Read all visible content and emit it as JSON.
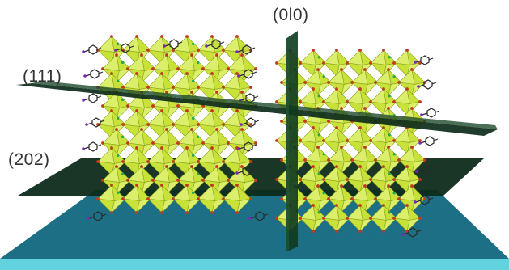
{
  "figure": {
    "labels": {
      "plane_010": "(0l0)",
      "plane_111": "(111)",
      "plane_202": "(202)"
    },
    "elements": {
      "octahedra": "lead-halide-octahedra",
      "organic_cations": "organic-spacer-cations",
      "substrate": "substrate-slab"
    },
    "colors": {
      "octahedron_face": "#c9e23a",
      "octahedron_face_light": "#dcef6c",
      "octahedron_edge": "#8aa21a",
      "vertex_atom": "#c23a1e",
      "halide_atom": "#2aa84a",
      "cation_bond": "#2a2a2a",
      "plane_dark": "#0d2b1a",
      "substrate_top": "#1d6f86",
      "substrate_edge": "#62d2df"
    }
  }
}
